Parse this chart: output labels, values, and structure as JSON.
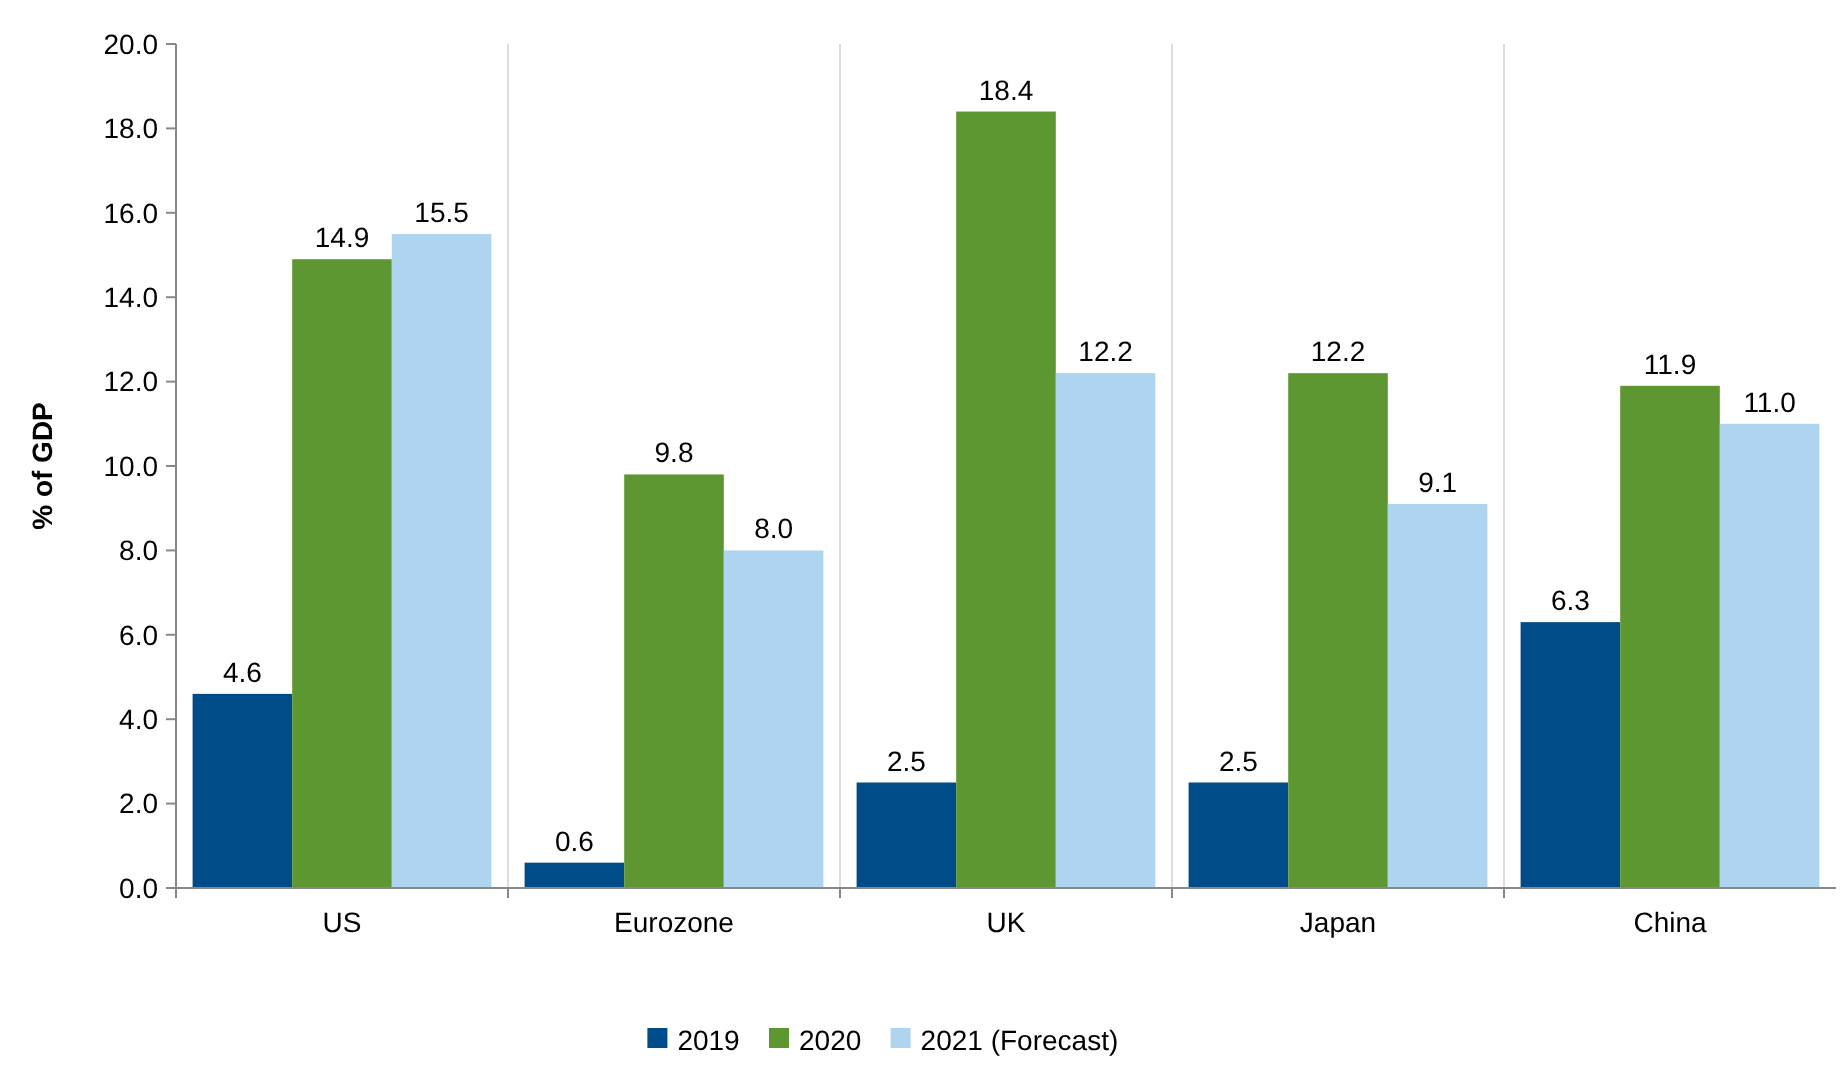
{
  "chart_data": {
    "type": "bar",
    "ylabel": "% of GDP",
    "categories": [
      "US",
      "Eurozone",
      "UK",
      "Japan",
      "China"
    ],
    "series": [
      {
        "name": "2019",
        "color": "#004c88",
        "values": [
          4.6,
          0.6,
          2.5,
          2.5,
          6.3
        ],
        "value_labels": [
          "4.6",
          "0.6",
          "2.5",
          "2.5",
          "6.3"
        ]
      },
      {
        "name": "2020",
        "color": "#5e9732",
        "values": [
          14.9,
          9.8,
          18.4,
          12.2,
          11.9
        ],
        "value_labels": [
          "14.9",
          "9.8",
          "18.4",
          "12.2",
          "11.9"
        ]
      },
      {
        "name": "2021 (Forecast)",
        "color": "#afd4ef",
        "values": [
          15.5,
          8.0,
          12.2,
          9.1,
          11.0
        ],
        "value_labels": [
          "15.5",
          "8.0",
          "12.2",
          "9.1",
          "11.0"
        ]
      }
    ],
    "ylim": [
      0,
      20
    ],
    "yticks": [
      {
        "value": 0,
        "label": "0.0"
      },
      {
        "value": 2,
        "label": "2.0"
      },
      {
        "value": 4,
        "label": "4.0"
      },
      {
        "value": 6,
        "label": "6.0"
      },
      {
        "value": 8,
        "label": "8.0"
      },
      {
        "value": 10,
        "label": "10.0"
      },
      {
        "value": 12,
        "label": "12.0"
      },
      {
        "value": 14,
        "label": "14.0"
      },
      {
        "value": 16,
        "label": "16.0"
      },
      {
        "value": 18,
        "label": "18.0"
      },
      {
        "value": 20,
        "label": "20.0"
      }
    ],
    "grid": "x",
    "legend": "bottom"
  }
}
